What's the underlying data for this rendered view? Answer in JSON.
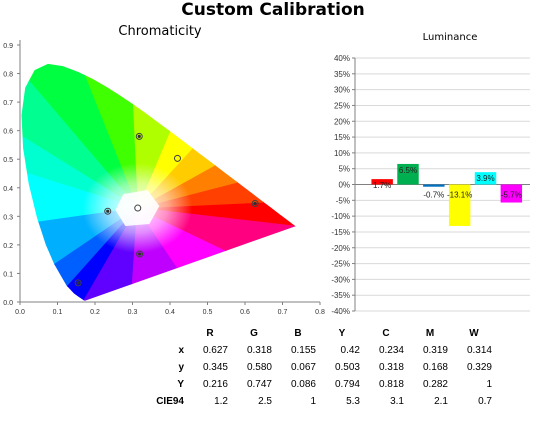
{
  "title": "Custom Calibration",
  "chart_data": [
    {
      "type": "scatter",
      "title": "Chromaticity",
      "xlim": [
        0,
        0.8
      ],
      "ylim": [
        0,
        0.9
      ],
      "xticks": [
        "0.0",
        "0.1",
        "0.2",
        "0.3",
        "0.4",
        "0.5",
        "0.6",
        "0.7",
        "0.8"
      ],
      "yticks": [
        "0.0",
        "0.1",
        "0.2",
        "0.3",
        "0.4",
        "0.5",
        "0.6",
        "0.7",
        "0.8",
        "0.9"
      ],
      "grid": false,
      "points": [
        {
          "name": "R",
          "x": 0.627,
          "y": 0.345
        },
        {
          "name": "G",
          "x": 0.318,
          "y": 0.58
        },
        {
          "name": "B",
          "x": 0.155,
          "y": 0.067
        },
        {
          "name": "Y",
          "x": 0.42,
          "y": 0.503
        },
        {
          "name": "C",
          "x": 0.234,
          "y": 0.318
        },
        {
          "name": "M",
          "x": 0.319,
          "y": 0.168
        },
        {
          "name": "W",
          "x": 0.314,
          "y": 0.329
        }
      ]
    },
    {
      "type": "bar",
      "title": "Luminance",
      "categories": [
        "R",
        "G",
        "B",
        "Y",
        "C",
        "M"
      ],
      "values": [
        1.7,
        6.5,
        -0.7,
        -13.1,
        3.9,
        -5.7
      ],
      "labels": [
        "1.7%",
        "6.5%",
        "-0.7%",
        "-13.1%",
        "3.9%",
        "-5.7%"
      ],
      "colors": [
        "#ff0000",
        "#00b050",
        "#0070c0",
        "#ffff00",
        "#00ffff",
        "#ff00ff"
      ],
      "ylim": [
        -40,
        40
      ],
      "yticks": [
        "40%",
        "35%",
        "30%",
        "25%",
        "20%",
        "15%",
        "10%",
        "5%",
        "0%",
        "-5%",
        "-10%",
        "-15%",
        "-20%",
        "-25%",
        "-30%",
        "-35%",
        "-40%"
      ],
      "grid": true
    }
  ],
  "table": {
    "headers": [
      "R",
      "G",
      "B",
      "Y",
      "C",
      "M",
      "W"
    ],
    "rows": [
      {
        "label": "x",
        "values": [
          "0.627",
          "0.318",
          "0.155",
          "0.42",
          "0.234",
          "0.319",
          "0.314"
        ]
      },
      {
        "label": "y",
        "values": [
          "0.345",
          "0.580",
          "0.067",
          "0.503",
          "0.318",
          "0.168",
          "0.329"
        ]
      },
      {
        "label": "Y",
        "values": [
          "0.216",
          "0.747",
          "0.086",
          "0.794",
          "0.818",
          "0.282",
          "1"
        ]
      },
      {
        "label": "CIE94",
        "values": [
          "1.2",
          "2.5",
          "1",
          "5.3",
          "3.1",
          "2.1",
          "0.7"
        ]
      }
    ]
  }
}
